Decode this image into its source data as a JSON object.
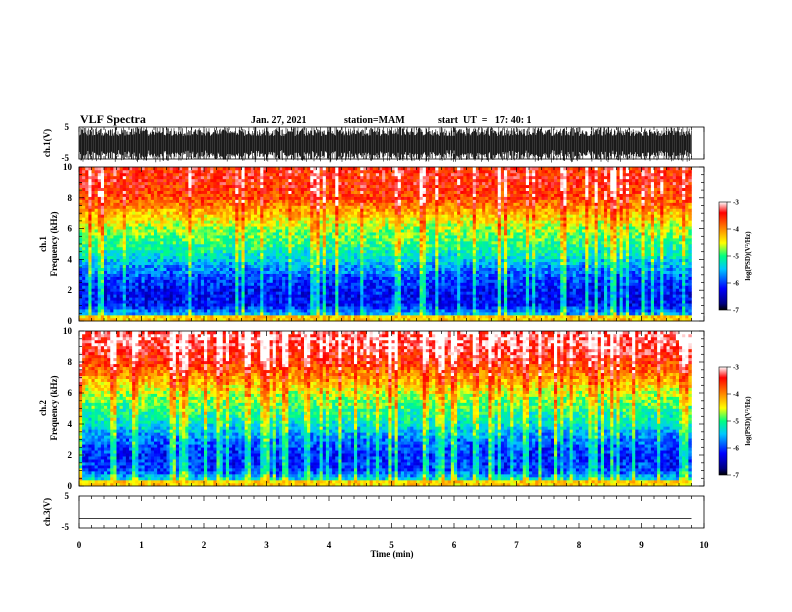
{
  "header": {
    "title": "VLF Spectra",
    "date": "Jan. 27, 2021",
    "station": "station=MAM",
    "start": "start  UT  =   17: 40: 1"
  },
  "chart_data": [
    {
      "type": "line",
      "name_label": "ch.1(V)",
      "ylabel": "ch.1(V)",
      "ylim": [
        -5,
        5
      ],
      "yticks": [
        "5",
        "-5"
      ],
      "xlim": [
        0,
        10
      ],
      "description_of_signal": "dense noise, data to 9.8 min"
    },
    {
      "type": "heatmap",
      "ylabel_top": "ch.1",
      "ylabel": "Frequency  (kHz)",
      "ylim": [
        0,
        10
      ],
      "yticks": [
        "0",
        "2",
        "4",
        "6",
        "8",
        "10"
      ],
      "xlim": [
        0,
        10
      ],
      "data_end_min": 9.8,
      "colorbar": {
        "label": "log(PSD)(V²/Hz)",
        "range": [
          -7,
          -3
        ],
        "ticks": [
          "-3",
          "-4",
          "-5",
          "-6",
          "-7"
        ],
        "colors": [
          "#000080",
          "#0000ff",
          "#00c8ff",
          "#00ff80",
          "#ffff00",
          "#ff8000",
          "#ff0000",
          "#ffffff"
        ]
      },
      "frequency_profile_logpsd": [
        [
          0,
          -5.0
        ],
        [
          1,
          -6.2
        ],
        [
          2,
          -6.2
        ],
        [
          3,
          -5.9
        ],
        [
          4,
          -5.4
        ],
        [
          5,
          -5.0
        ],
        [
          6,
          -4.7
        ],
        [
          7,
          -4.2
        ],
        [
          8,
          -3.7
        ],
        [
          9,
          -3.5
        ],
        [
          10,
          -3.5
        ]
      ]
    },
    {
      "type": "heatmap",
      "ylabel_top": "ch.2",
      "ylabel": "Frequency  (kHz)",
      "ylim": [
        0,
        10
      ],
      "yticks": [
        "0",
        "2",
        "4",
        "6",
        "8",
        "10"
      ],
      "xlim": [
        0,
        10
      ],
      "data_end_min": 9.8,
      "colorbar": {
        "label": "log(PSD)(V²/Hz)",
        "range": [
          -7,
          -3
        ],
        "ticks": [
          "-3",
          "-4",
          "-5",
          "-6",
          "-7"
        ]
      },
      "frequency_profile_logpsd": [
        [
          0,
          -4.8
        ],
        [
          1,
          -6.0
        ],
        [
          2,
          -6.1
        ],
        [
          3,
          -5.8
        ],
        [
          4,
          -5.3
        ],
        [
          5,
          -5.0
        ],
        [
          6,
          -4.6
        ],
        [
          7,
          -4.1
        ],
        [
          8,
          -3.6
        ],
        [
          9,
          -3.3
        ],
        [
          10,
          -3.2
        ]
      ]
    },
    {
      "type": "line",
      "ylabel": "ch.3(V)",
      "ylim": [
        -5,
        5
      ],
      "yticks": [
        "5",
        "-5"
      ],
      "xlim": [
        0,
        10
      ],
      "x": [
        0,
        9.8
      ],
      "y": [
        -2,
        -2
      ]
    }
  ],
  "xaxis": {
    "label": "Time  (min)",
    "ticks": [
      "0",
      "1",
      "2",
      "3",
      "4",
      "5",
      "6",
      "7",
      "8",
      "9",
      "10"
    ]
  }
}
